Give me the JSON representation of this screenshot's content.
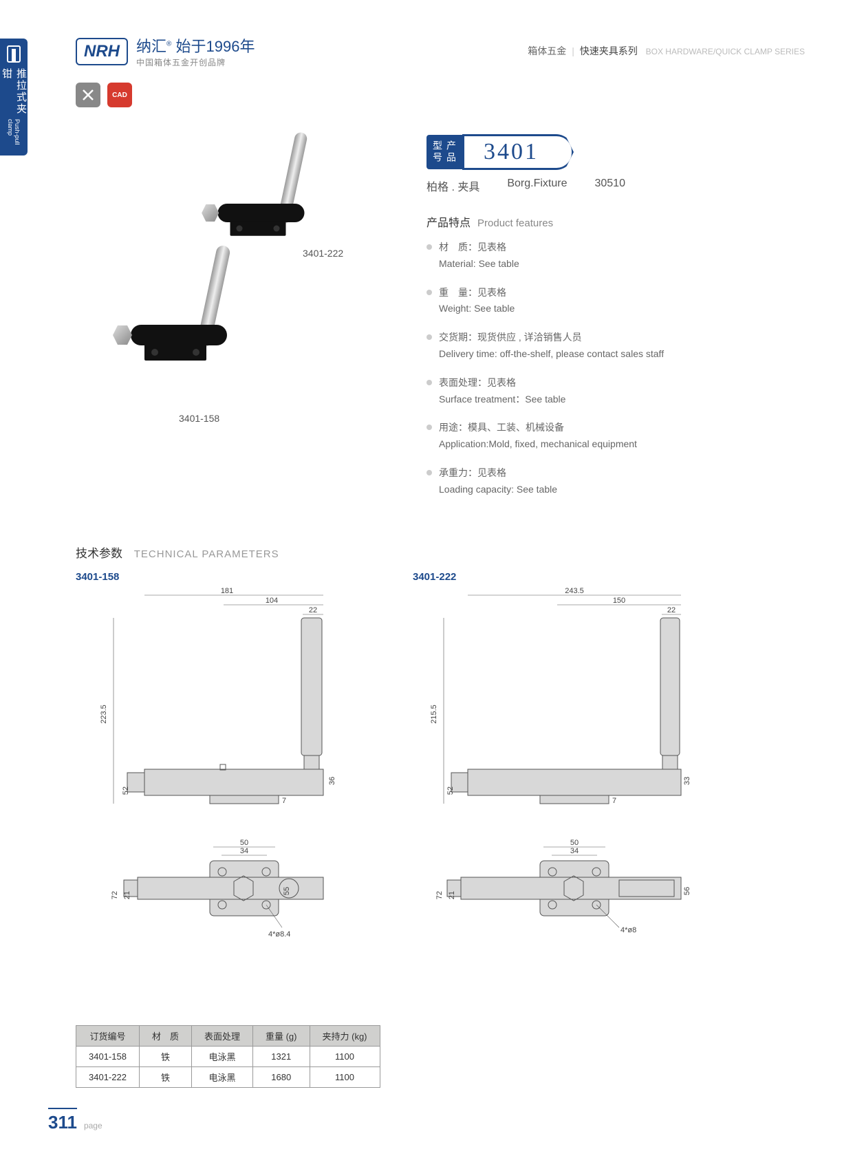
{
  "side_tab": {
    "cn": "推拉式夹钳",
    "en": "Push-pull clamp"
  },
  "header": {
    "logo": "NRH",
    "brand_cn": "纳汇",
    "brand_sup": "®",
    "brand_year": "始于1996年",
    "brand_sub": "中国箱体五金开创品牌",
    "right_cn1": "箱体五金",
    "right_cn2": "快速夹具系列",
    "right_en": "BOX HARDWARE/QUICK CLAMP SERIES"
  },
  "icons": {
    "gray": "✕",
    "red": "CAD"
  },
  "product_labels": {
    "p1": "3401-222",
    "p2": "3401-158"
  },
  "model": {
    "label": "产品\n型号",
    "number": "3401"
  },
  "subtitle": {
    "a": "柏格 . 夹具",
    "b": "Borg.Fixture",
    "c": "30510"
  },
  "features": {
    "hd_cn": "产品特点",
    "hd_en": "Product features",
    "items": [
      {
        "cn": "材　质：见表格",
        "en": "Material: See table"
      },
      {
        "cn": "重　量：见表格",
        "en": "Weight: See table"
      },
      {
        "cn": "交货期：现货供应 , 详洽销售人员",
        "en": "Delivery time: off-the-shelf, please contact sales staff"
      },
      {
        "cn": "表面处理：见表格",
        "en": "Surface treatment：See table"
      },
      {
        "cn": "用途：模具、工装、机械设备",
        "en": "Application:Mold, fixed, mechanical equipment"
      },
      {
        "cn": "承重力：见表格",
        "en": "Loading capacity: See table"
      }
    ]
  },
  "tech": {
    "cn": "技术参数",
    "en": "TECHNICAL PARAMETERS"
  },
  "drawings": [
    {
      "model": "3401-158",
      "dims": {
        "w_total": "181",
        "w_handle": "104",
        "w_tip": "22",
        "h_total": "223.5",
        "h_body": "52",
        "h_base": "7",
        "h_handle_body": "36",
        "top_w1": "50",
        "top_w2": "34",
        "top_h1": "72",
        "top_h2": "21",
        "top_h3": "55",
        "hole": "4*ø8.4"
      }
    },
    {
      "model": "3401-222",
      "dims": {
        "w_total": "243.5",
        "w_handle": "150",
        "w_tip": "22",
        "h_total": "215.5",
        "h_body": "52",
        "h_base": "7",
        "h_handle_body": "33",
        "top_w1": "50",
        "top_w2": "34",
        "top_h1": "72",
        "top_h2": "21",
        "top_h3": "56",
        "hole": "4*ø8"
      }
    }
  ],
  "table": {
    "headers": [
      "订货编号",
      "材　质",
      "表面处理",
      "重量 (g)",
      "夹持力 (kg)"
    ],
    "rows": [
      [
        "3401-158",
        "铁",
        "电泳黑",
        "1321",
        "1100"
      ],
      [
        "3401-222",
        "铁",
        "电泳黑",
        "1680",
        "1100"
      ]
    ]
  },
  "footer": {
    "page": "311",
    "label": "page"
  },
  "colors": {
    "brand": "#1d4a8c",
    "red": "#d63a2e",
    "gray_fill": "#d8d8d8"
  }
}
